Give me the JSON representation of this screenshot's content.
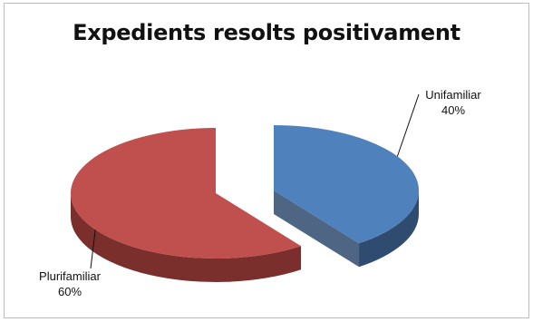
{
  "chart_data": {
    "type": "pie",
    "title": "Expedients resolts positivament",
    "slices": [
      {
        "label": "Unifamiliar",
        "value": 40,
        "value_label": "40%",
        "color": "#4f81bd",
        "side_color": "#2f4b6f"
      },
      {
        "label": "Plurifamiliar",
        "value": 60,
        "value_label": "60%",
        "color": "#c0504d",
        "side_color": "#7b2f2d"
      }
    ],
    "style": "3d-exploded",
    "legend": "none"
  }
}
